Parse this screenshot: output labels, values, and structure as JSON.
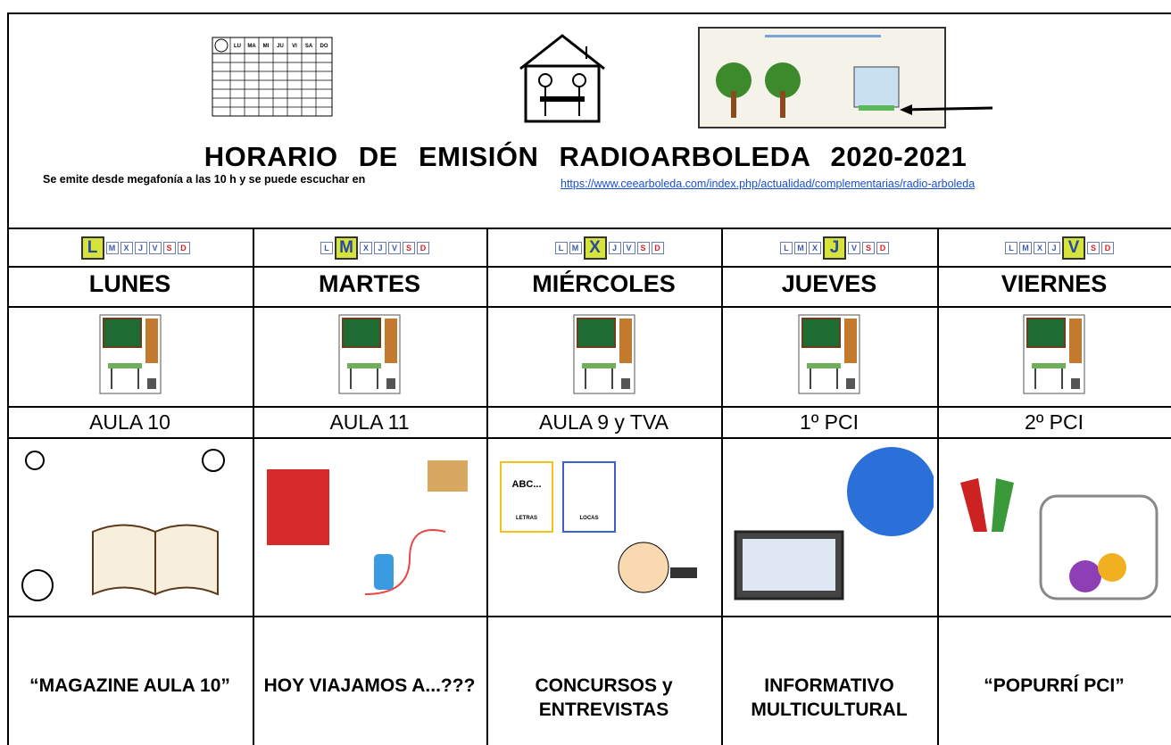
{
  "header": {
    "calendar_days": [
      "LU",
      "MA",
      "MI",
      "JU",
      "VI",
      "SA",
      "DO"
    ],
    "title": "HORARIO DE EMISIÓN RADIOARBOLEDA 2020-2021",
    "subtitle": "Se emite desde megafonía a las 10 h y se puede escuchar en",
    "link": "https://www.ceearboleda.com/index.php/actualidad/complementarias/radio-arboleda"
  },
  "week_letters": [
    "L",
    "M",
    "X",
    "J",
    "V",
    "S",
    "D"
  ],
  "columns": [
    {
      "highlight": 0,
      "day": "LUNES",
      "room": "AULA 10",
      "program": "“MAGAZINE AULA 10”"
    },
    {
      "highlight": 1,
      "day": "MARTES",
      "room": "AULA 11",
      "program": "HOY VIAJAMOS A...???"
    },
    {
      "highlight": 2,
      "day": "MIÉRCOLES",
      "room": "AULA 9 y TVA",
      "program": "CONCURSOS y ENTREVISTAS",
      "card_texts": [
        "ABC...",
        "LETRAS",
        "LOCAS"
      ]
    },
    {
      "highlight": 3,
      "day": "JUEVES",
      "room": "1º PCI",
      "program": "INFORMATIVO MULTICULTURAL"
    },
    {
      "highlight": 4,
      "day": "VIERNES",
      "room": "2º PCI",
      "program": "“POPURRÍ PCI”"
    }
  ]
}
